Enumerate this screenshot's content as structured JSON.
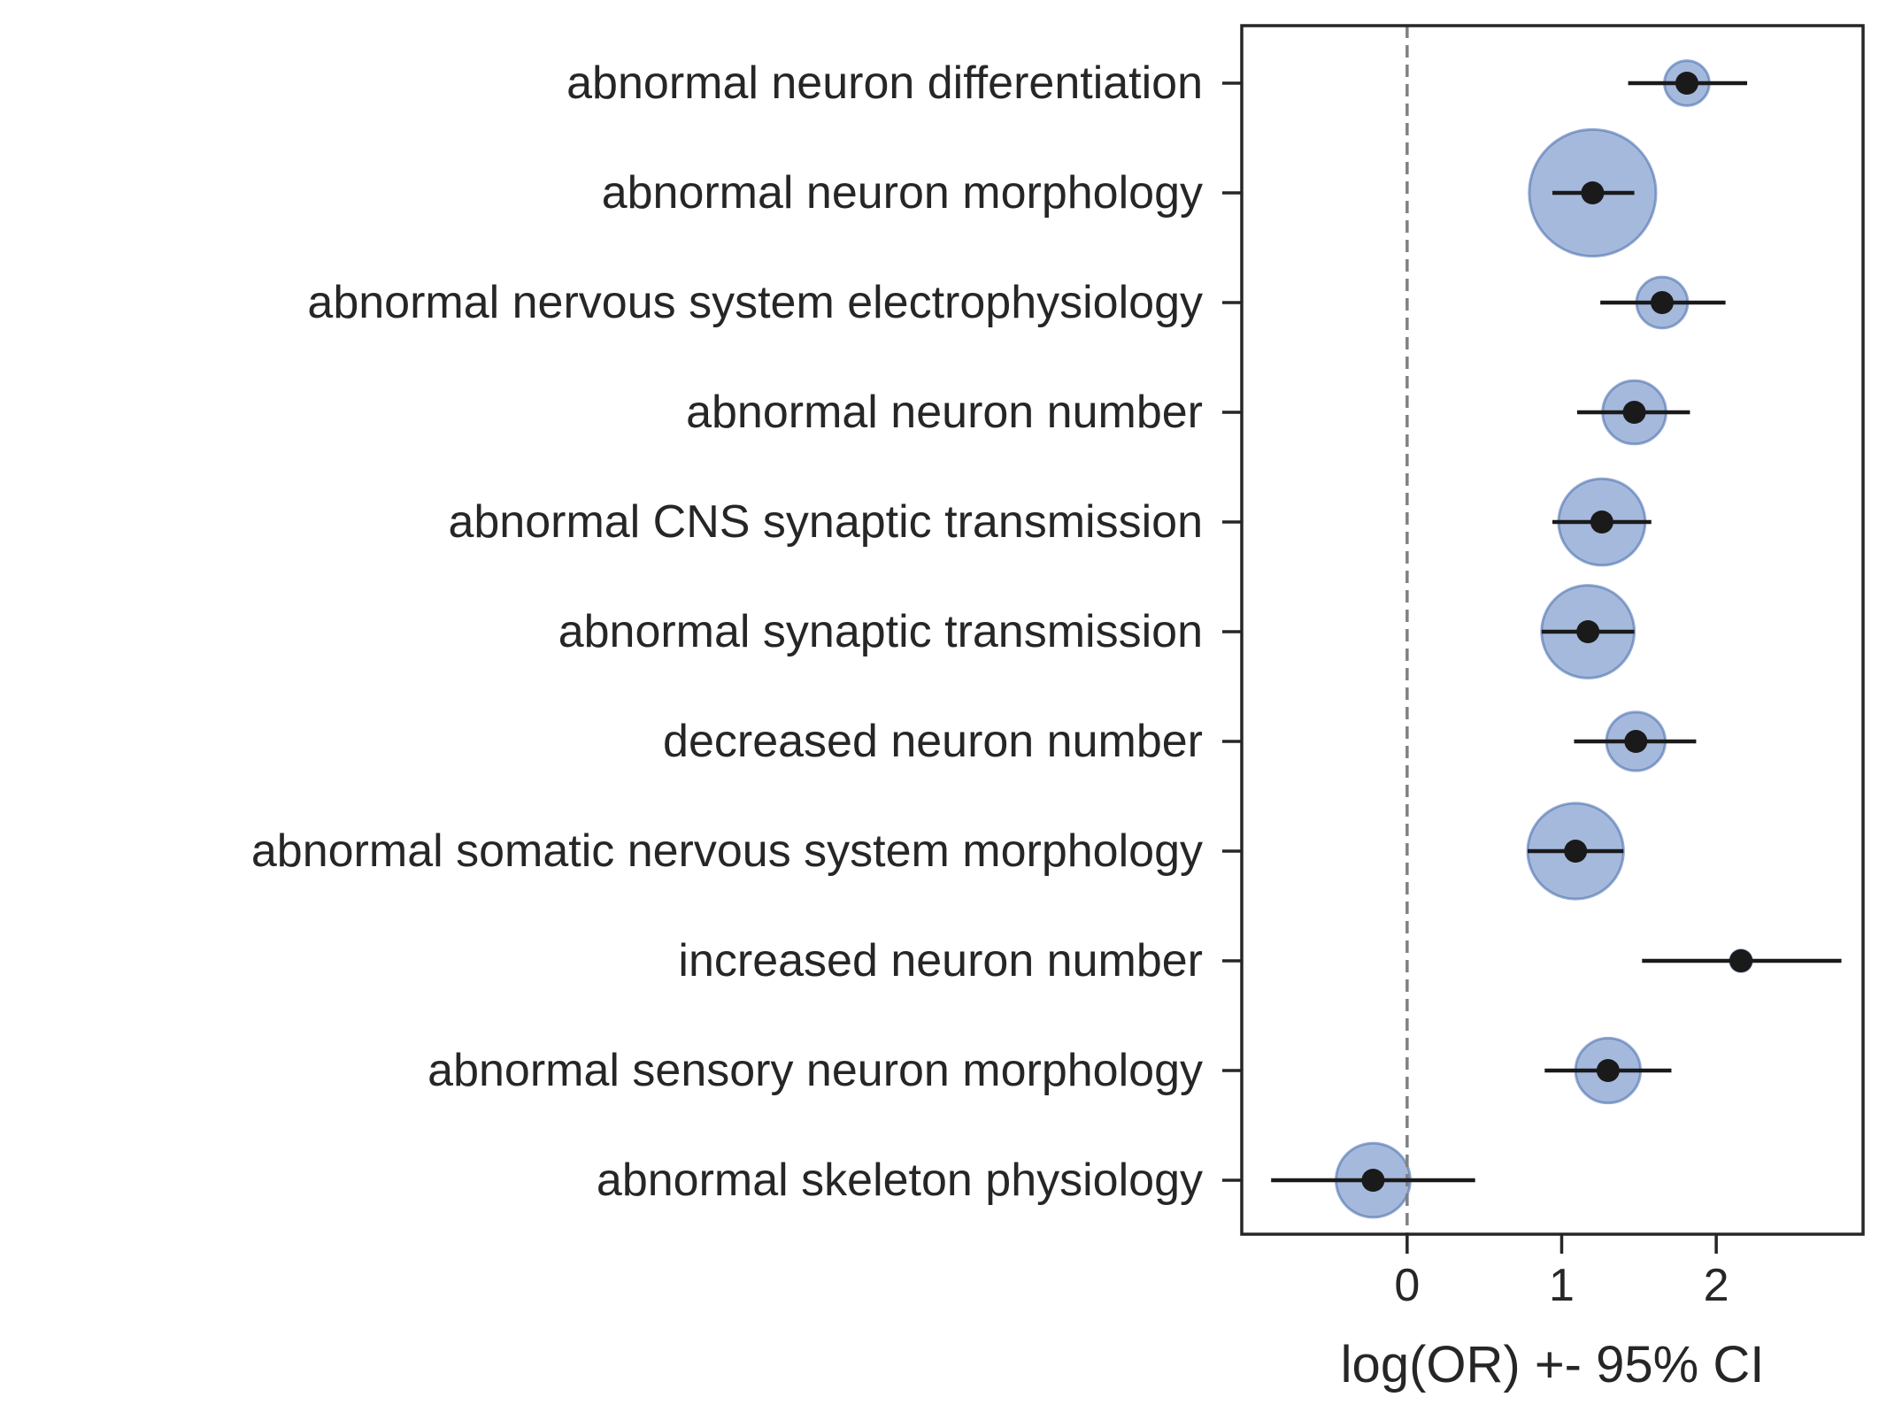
{
  "chart_data": {
    "type": "scatter",
    "subtype": "forest-plot",
    "title": "",
    "xlabel": "log(OR) +- 95% CI",
    "ylabel": "",
    "xlim": [
      -1.07,
      2.95
    ],
    "xticks": [
      0,
      1,
      2
    ],
    "reference_line": {
      "x": 0,
      "style": "dashed"
    },
    "grid": false,
    "legend": "none",
    "colors": {
      "bubble_fill": "#5b7fbf",
      "bubble_stroke": "#4c72b0",
      "point": "#1a1a1a",
      "ci_line": "#1a1a1a",
      "reference_line": "#808080",
      "axes": "#262626",
      "text": "#262626"
    },
    "categories": [
      "abnormal neuron differentiation",
      "abnormal neuron morphology",
      "abnormal nervous system electrophysiology",
      "abnormal neuron number",
      "abnormal CNS synaptic transmission",
      "abnormal synaptic transmission",
      "decreased neuron number",
      "abnormal somatic nervous system morphology",
      "increased neuron number",
      "abnormal sensory neuron morphology",
      "abnormal skeleton physiology"
    ],
    "points": [
      {
        "category": "abnormal neuron differentiation",
        "log_or": 1.81,
        "ci_low": 1.43,
        "ci_high": 2.2,
        "bubble_size": 0.29
      },
      {
        "category": "abnormal neuron morphology",
        "log_or": 1.2,
        "ci_low": 0.94,
        "ci_high": 1.47,
        "bubble_size": 0.82
      },
      {
        "category": "abnormal nervous system electrophysiology",
        "log_or": 1.65,
        "ci_low": 1.25,
        "ci_high": 2.06,
        "bubble_size": 0.33
      },
      {
        "category": "abnormal neuron number",
        "log_or": 1.47,
        "ci_low": 1.1,
        "ci_high": 1.83,
        "bubble_size": 0.41
      },
      {
        "category": "abnormal CNS synaptic transmission",
        "log_or": 1.26,
        "ci_low": 0.94,
        "ci_high": 1.58,
        "bubble_size": 0.56
      },
      {
        "category": "abnormal synaptic transmission",
        "log_or": 1.17,
        "ci_low": 0.87,
        "ci_high": 1.47,
        "bubble_size": 0.6
      },
      {
        "category": "decreased neuron number",
        "log_or": 1.48,
        "ci_low": 1.08,
        "ci_high": 1.87,
        "bubble_size": 0.38
      },
      {
        "category": "abnormal somatic nervous system morphology",
        "log_or": 1.09,
        "ci_low": 0.78,
        "ci_high": 1.4,
        "bubble_size": 0.62
      },
      {
        "category": "increased neuron number",
        "log_or": 2.16,
        "ci_low": 1.52,
        "ci_high": 2.81,
        "bubble_size": 0.14
      },
      {
        "category": "abnormal sensory neuron morphology",
        "log_or": 1.3,
        "ci_low": 0.89,
        "ci_high": 1.71,
        "bubble_size": 0.42
      },
      {
        "category": "abnormal skeleton physiology",
        "log_or": -0.22,
        "ci_low": -0.88,
        "ci_high": 0.44,
        "bubble_size": 0.48
      }
    ]
  }
}
